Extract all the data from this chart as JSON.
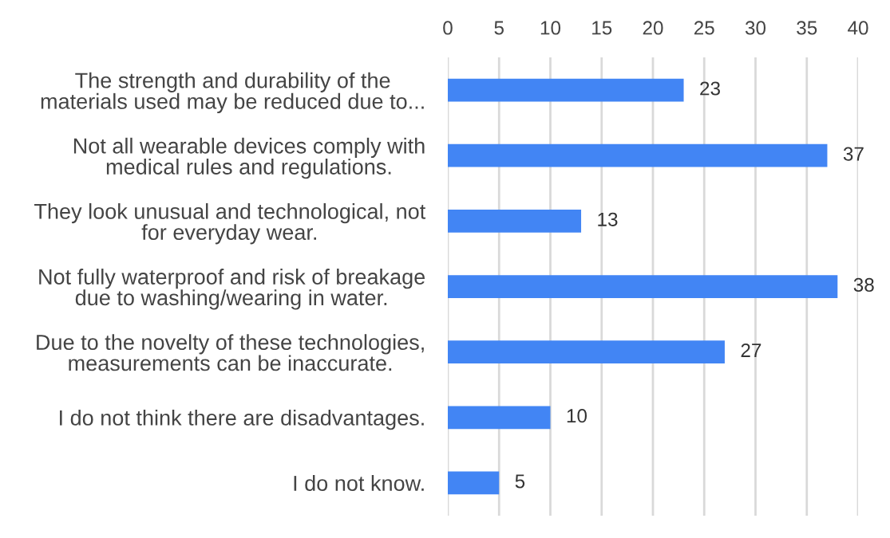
{
  "chart_data": {
    "type": "bar",
    "orientation": "horizontal",
    "categories": [
      "The strength and durability of the\nmaterials used may be reduced due to...",
      "Not all wearable devices comply with\nmedical rules and regulations.",
      "They look unusual and technological, not\nfor everyday wear.",
      "Not fully waterproof and risk of breakage\ndue to washing/wearing in water.",
      "Due to the novelty of these technologies,\nmeasurements can be inaccurate.",
      "I do not think there are disadvantages.",
      "I do not know."
    ],
    "values": [
      23,
      37,
      13,
      38,
      27,
      10,
      5
    ],
    "color": "#4285f4",
    "xlim": [
      0,
      40
    ],
    "xticks": [
      0,
      5,
      10,
      15,
      20,
      25,
      30,
      35,
      40
    ],
    "grid": "x",
    "data_labels": true
  }
}
